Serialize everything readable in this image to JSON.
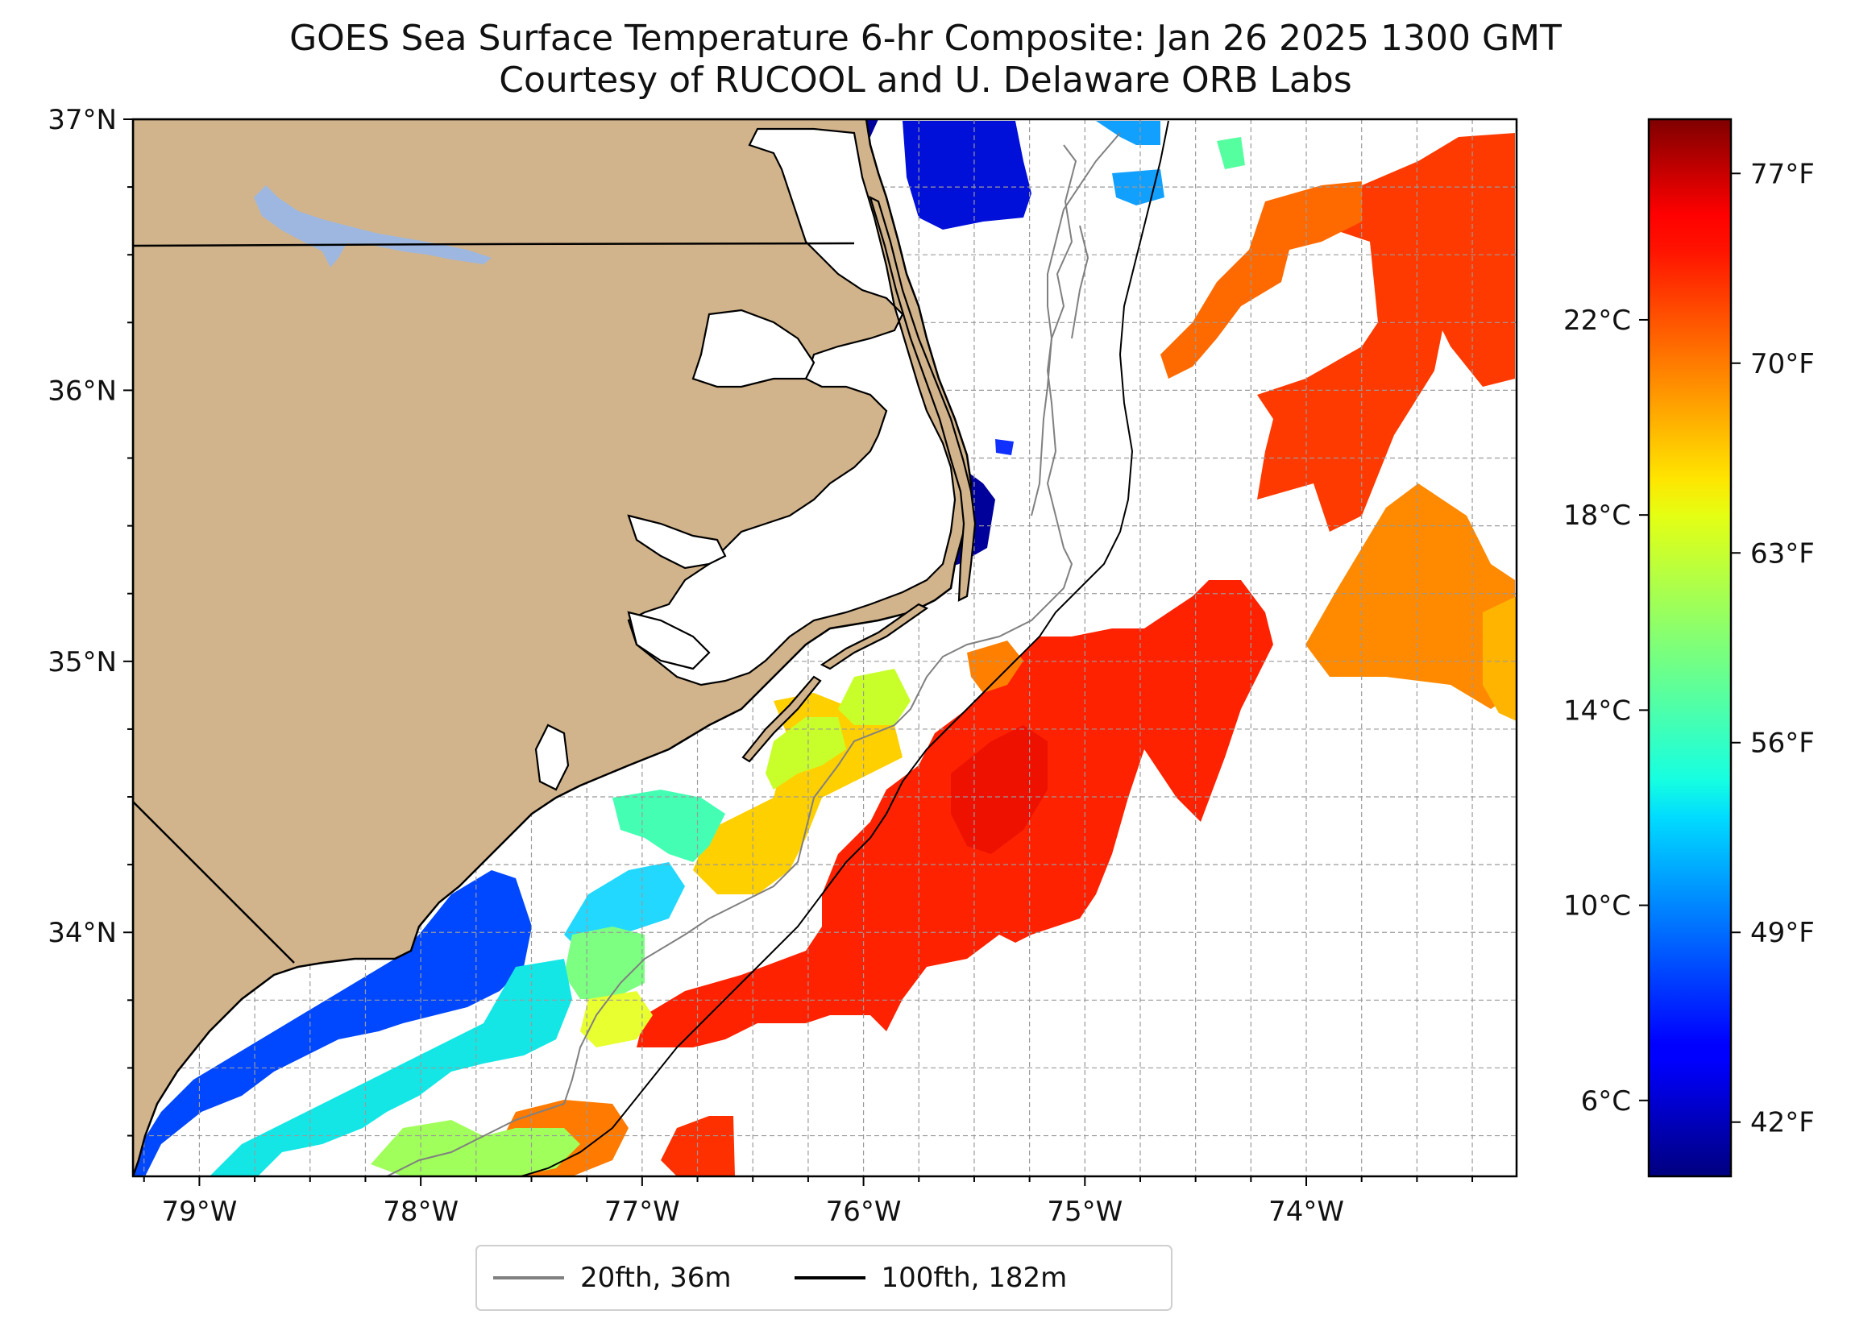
{
  "title": {
    "line1": "GOES Sea Surface Temperature 6-hr Composite: Jan 26 2025 1300 GMT",
    "line2": "Courtesy of RUCOOL and U. Delaware ORB Labs"
  },
  "map": {
    "lon_range": [
      -79.3,
      -73.05
    ],
    "lat_range": [
      33.1,
      37.0
    ],
    "lat_ticks": [
      {
        "value": 37,
        "label": "37°N"
      },
      {
        "value": 36,
        "label": "36°N"
      },
      {
        "value": 35,
        "label": "35°N"
      },
      {
        "value": 34,
        "label": "34°N"
      }
    ],
    "lon_ticks": [
      {
        "value": -79,
        "label": "79°W"
      },
      {
        "value": -78,
        "label": "78°W"
      },
      {
        "value": -77,
        "label": "77°W"
      },
      {
        "value": -76,
        "label": "76°W"
      },
      {
        "value": -75,
        "label": "75°W"
      },
      {
        "value": -74,
        "label": "74°W"
      }
    ],
    "gridlines": true,
    "grid_step_deg": 0.25,
    "land_color": "#D2B48C",
    "lake_color": "#9DB7E0"
  },
  "colorbar": {
    "colormap": "jet",
    "range_f": [
      40,
      79
    ],
    "celsius_ticks": [
      {
        "value": 22,
        "label": "22°C"
      },
      {
        "value": 18,
        "label": "18°C"
      },
      {
        "value": 14,
        "label": "14°C"
      },
      {
        "value": 10,
        "label": "10°C"
      },
      {
        "value": 6,
        "label": "6°C"
      }
    ],
    "fahrenheit_ticks": [
      {
        "value": 77,
        "label": "77°F"
      },
      {
        "value": 70,
        "label": "70°F"
      },
      {
        "value": 63,
        "label": "63°F"
      },
      {
        "value": 56,
        "label": "56°F"
      },
      {
        "value": 49,
        "label": "49°F"
      },
      {
        "value": 42,
        "label": "42°F"
      }
    ]
  },
  "legend": {
    "position": "below",
    "items": [
      {
        "label": "20fth, 36m",
        "color": "#808080"
      },
      {
        "label": "100fth, 182m",
        "color": "#000000"
      }
    ]
  }
}
